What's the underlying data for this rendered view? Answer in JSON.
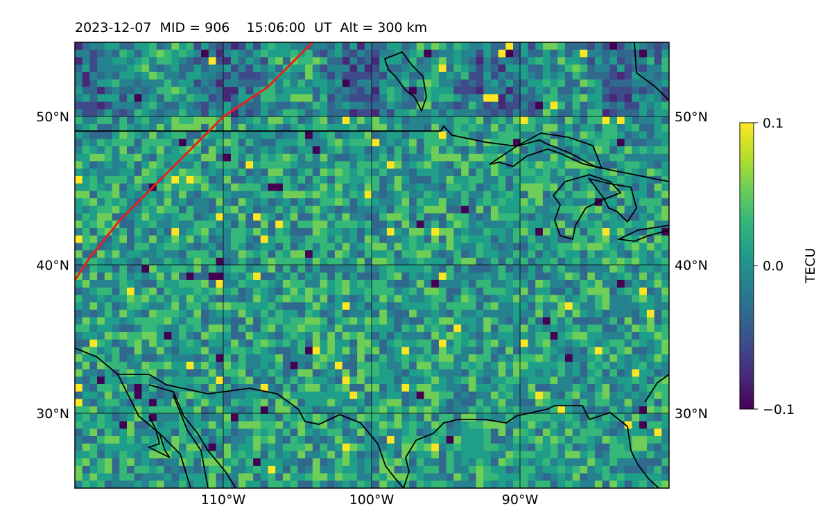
{
  "title": "2023-12-07  MID = 906    15:06:00  UT  Alt = 300 km",
  "map": {
    "projection": "equirectangular",
    "lon_range": [
      -120,
      -80
    ],
    "lat_range": [
      25,
      55
    ],
    "grid_lons": [
      -110,
      -100,
      -90
    ],
    "grid_lats": [
      30,
      40,
      50
    ],
    "lon_labels": [
      "110°W",
      "100°W",
      "90°W"
    ],
    "lat_labels": [
      "30°N",
      "40°N",
      "50°N"
    ],
    "field": "TEC perturbation (TECU), gridded, viridis colormap",
    "grid_cell_deg": 0.5,
    "terminator_color": "#e8201a",
    "terminator_line": [
      [
        -120,
        39
      ],
      [
        -119,
        40.5
      ],
      [
        -117,
        43
      ],
      [
        -114,
        46
      ],
      [
        -110,
        50
      ],
      [
        -107,
        52
      ],
      [
        -104,
        55
      ]
    ]
  },
  "colorbar": {
    "label": "TECU",
    "colormap": "viridis",
    "vmin": -0.1,
    "vmax": 0.1,
    "ticks": [
      {
        "value": 0.1,
        "label": "0.1"
      },
      {
        "value": 0.0,
        "label": "0.0"
      },
      {
        "value": -0.1,
        "label": "−0.1"
      }
    ]
  },
  "colors": {
    "viridis": [
      "#440154",
      "#482878",
      "#3e4a89",
      "#31688e",
      "#26828e",
      "#1f9e89",
      "#35b779",
      "#6ece58",
      "#b5de2b",
      "#fde725"
    ]
  }
}
